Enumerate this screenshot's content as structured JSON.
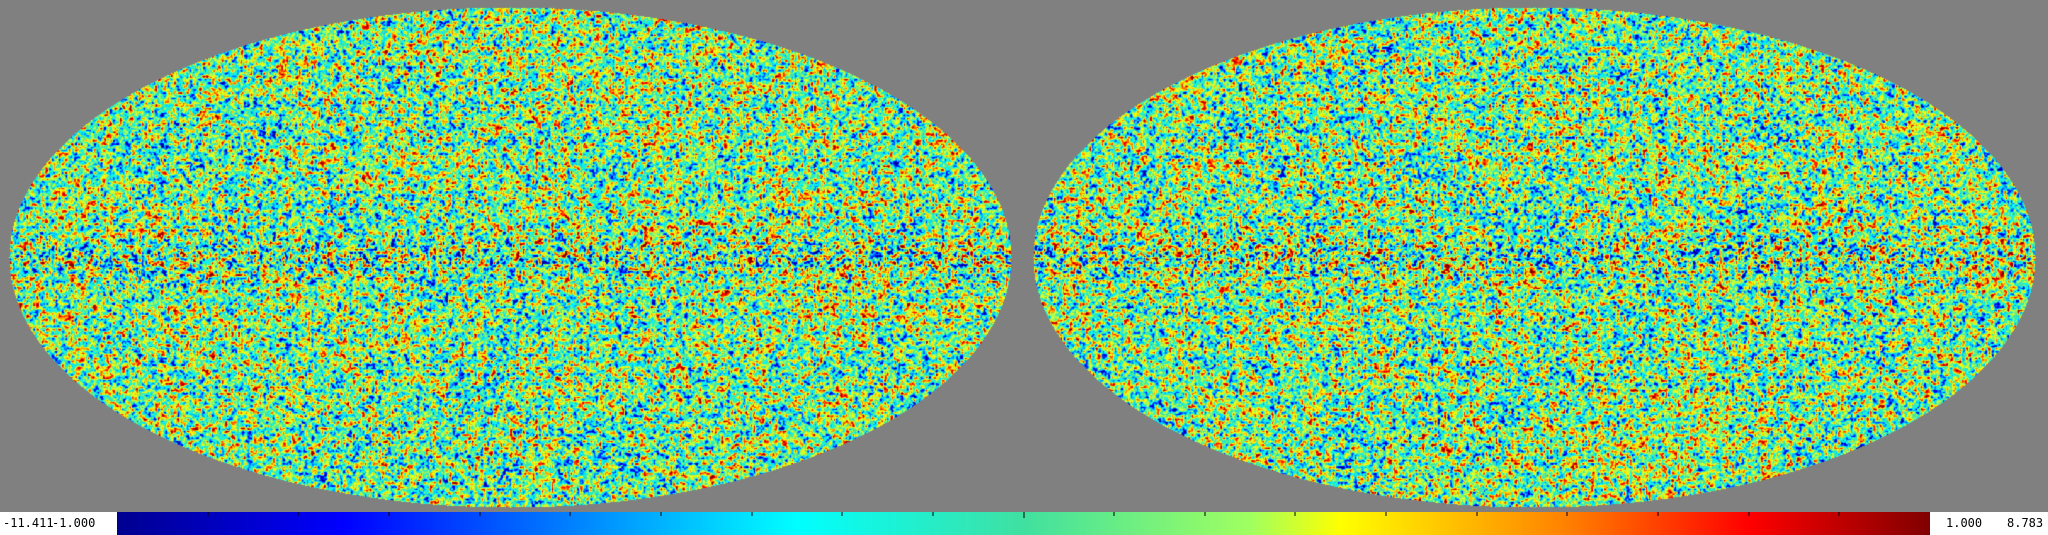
{
  "colorbar": {
    "min_label": "-11.411",
    "low_label": "-1.000",
    "high_label": "1.000",
    "max_label": "8.783",
    "colormap": [
      "#00008f",
      "#0000ff",
      "#0080ff",
      "#00ffff",
      "#40e0a0",
      "#a0ff60",
      "#ffff00",
      "#ff8000",
      "#ff0000",
      "#800000"
    ]
  },
  "maps": [
    {
      "projection": "mollweide"
    },
    {
      "projection": "mollweide"
    }
  ],
  "background_color": "#808080"
}
